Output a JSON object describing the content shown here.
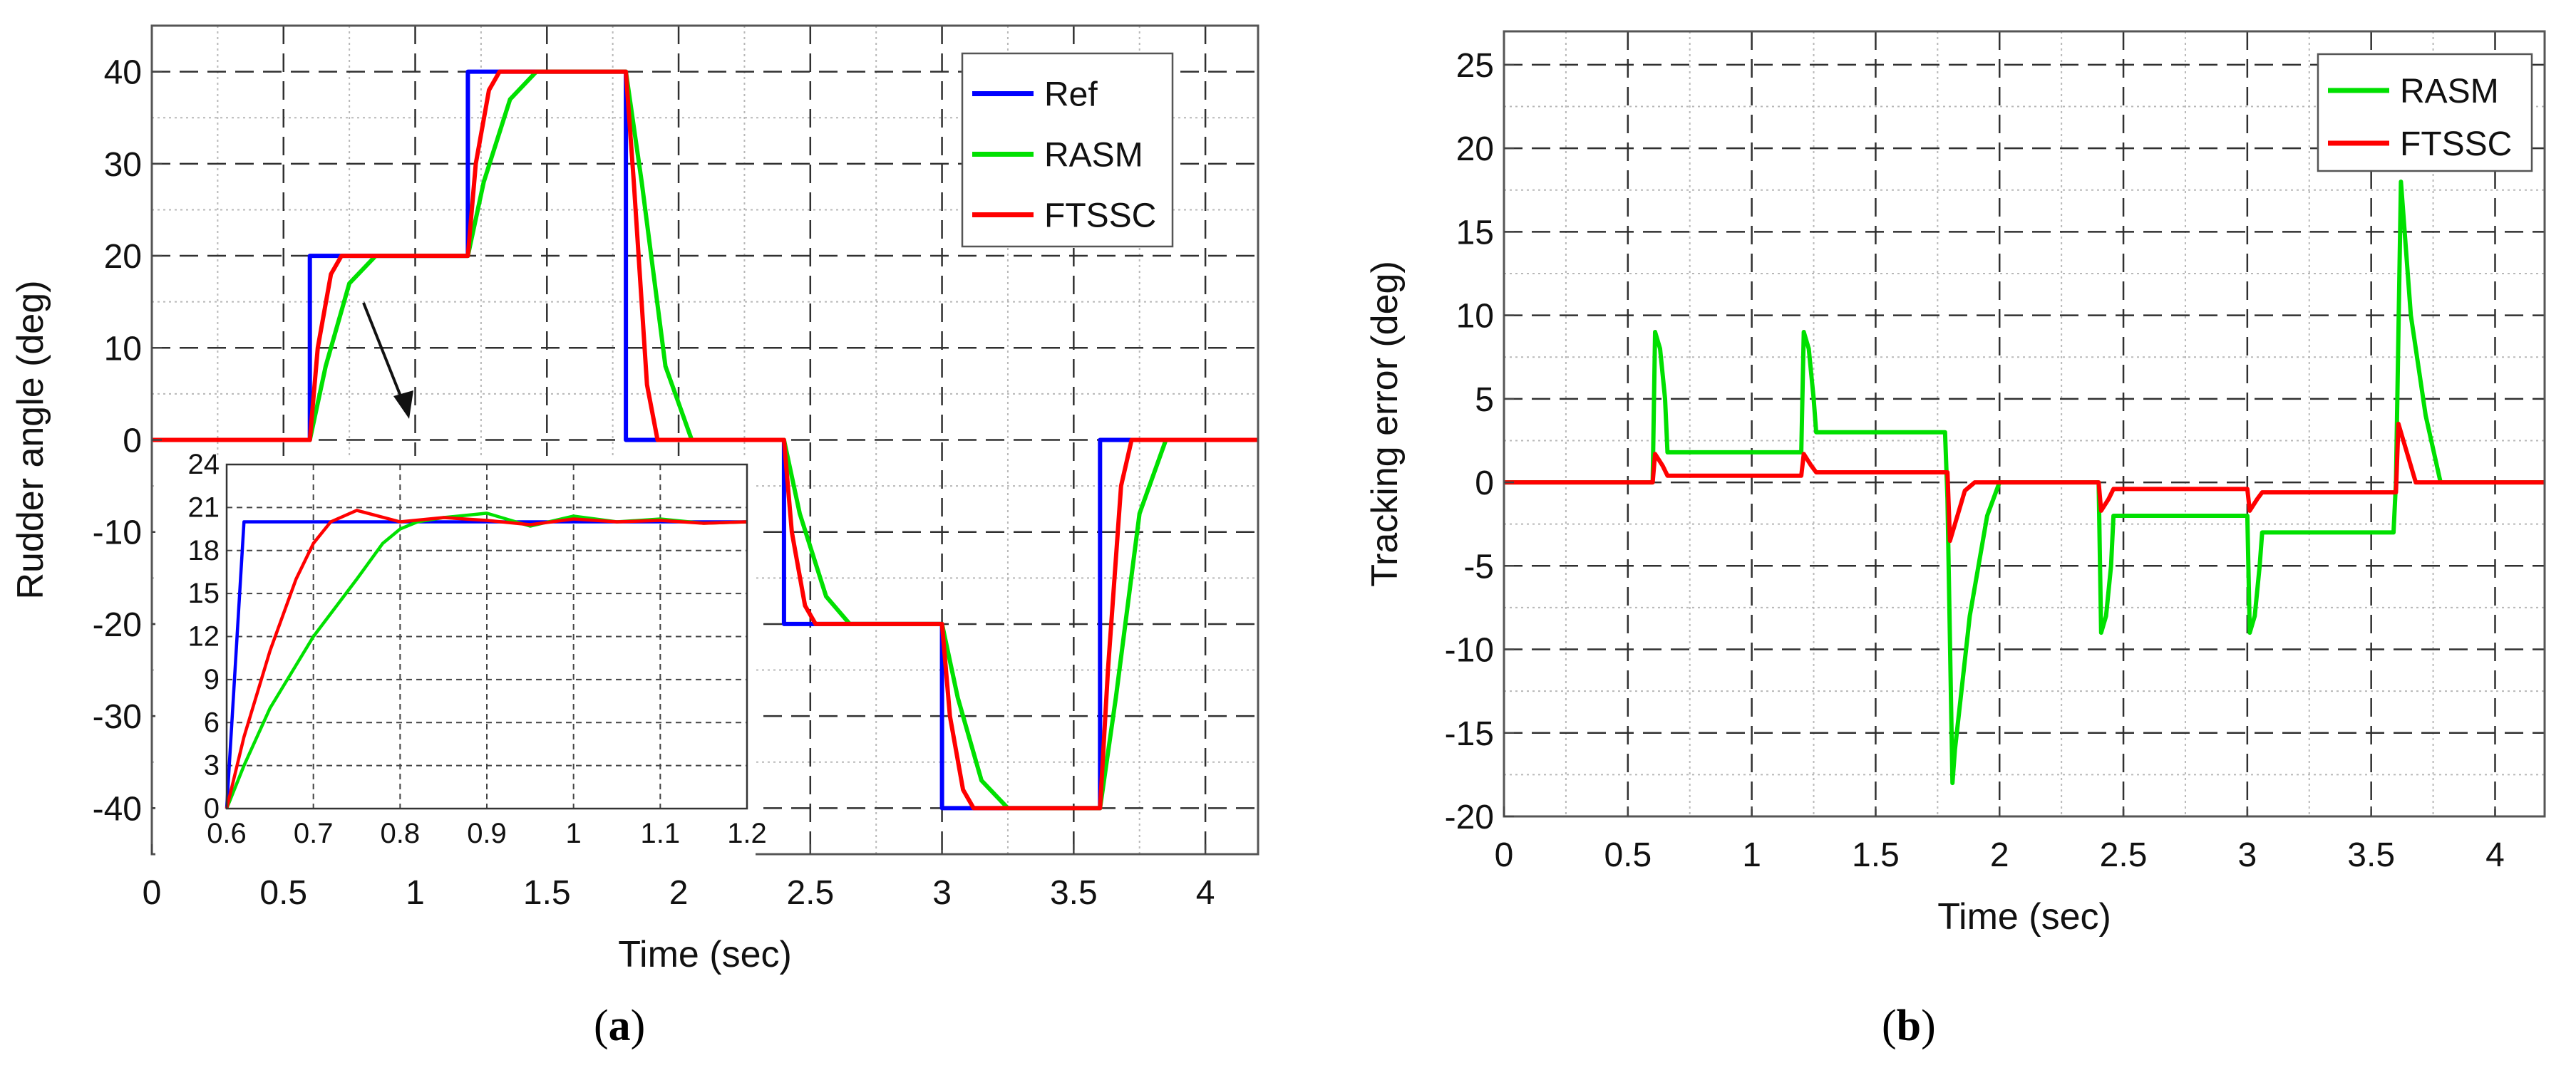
{
  "chart_data": [
    {
      "type": "line",
      "caption_letter": "a",
      "xlabel": "Time (sec)",
      "ylabel": "Rudder angle (deg)",
      "xlim": [
        0,
        4.2
      ],
      "ylim": [
        -45,
        45
      ],
      "xticks": [
        "0",
        "0.5",
        "1",
        "1.5",
        "2",
        "2.5",
        "3",
        "3.5",
        "4"
      ],
      "yticks": [
        "-40",
        "-30",
        "-20",
        "-10",
        "0",
        "10",
        "20",
        "30",
        "40"
      ],
      "grid": true,
      "legend_position": "top-right",
      "annotation": "arrow pointing from the 0.6–0.7 s rise to the zoomed inset",
      "series": [
        {
          "name": "Ref",
          "color": "#0000ff",
          "x": [
            0,
            0.6,
            0.6,
            1.2,
            1.2,
            1.8,
            1.8,
            2.4,
            2.4,
            3.0,
            3.0,
            3.6,
            3.6,
            4.2
          ],
          "y": [
            0,
            0,
            20,
            20,
            40,
            40,
            0,
            0,
            -20,
            -20,
            -40,
            -40,
            0,
            0
          ]
        },
        {
          "name": "RASM",
          "color": "#00e000",
          "x": [
            0,
            0.6,
            0.66,
            0.75,
            0.85,
            1.2,
            1.26,
            1.36,
            1.46,
            1.8,
            1.86,
            1.95,
            2.05,
            2.4,
            2.46,
            2.56,
            2.65,
            3.0,
            3.06,
            3.15,
            3.25,
            3.6,
            3.66,
            3.75,
            3.85,
            4.2
          ],
          "y": [
            0,
            0,
            8,
            17,
            20,
            20,
            28,
            37,
            40,
            40,
            28,
            8,
            0,
            0,
            -8,
            -17,
            -20,
            -20,
            -28,
            -37,
            -40,
            -40,
            -28,
            -8,
            0,
            0
          ]
        },
        {
          "name": "FTSSC",
          "color": "#ff0000",
          "x": [
            0,
            0.6,
            0.63,
            0.68,
            0.72,
            1.2,
            1.23,
            1.28,
            1.32,
            1.8,
            1.83,
            1.88,
            1.92,
            2.4,
            2.43,
            2.48,
            2.52,
            3.0,
            3.03,
            3.08,
            3.12,
            3.6,
            3.63,
            3.68,
            3.72,
            4.2
          ],
          "y": [
            0,
            0,
            10,
            18,
            20,
            20,
            30,
            38,
            40,
            40,
            28,
            6,
            0,
            0,
            -10,
            -18,
            -20,
            -20,
            -30,
            -38,
            -40,
            -40,
            -25,
            -5,
            0,
            0
          ]
        }
      ],
      "inset": {
        "xlim": [
          0.6,
          1.2
        ],
        "ylim": [
          0,
          24
        ],
        "xticks": [
          "0.6",
          "0.7",
          "0.8",
          "0.9",
          "1",
          "1.1",
          "1.2"
        ],
        "yticks": [
          "0",
          "3",
          "6",
          "9",
          "12",
          "15",
          "18",
          "21",
          "24"
        ],
        "series": [
          {
            "name": "Ref",
            "color": "#0000ff",
            "x": [
              0.6,
              0.62,
              1.2
            ],
            "y": [
              0,
              20,
              20
            ]
          },
          {
            "name": "RASM",
            "color": "#00e000",
            "x": [
              0.6,
              0.62,
              0.65,
              0.7,
              0.75,
              0.78,
              0.8,
              0.82,
              0.85,
              0.9,
              0.95,
              1.0,
              1.05,
              1.1,
              1.15,
              1.2
            ],
            "y": [
              0,
              3,
              7,
              12,
              16,
              18.5,
              19.5,
              20,
              20.3,
              20.6,
              19.7,
              20.4,
              20.0,
              20.2,
              19.9,
              20.0
            ]
          },
          {
            "name": "FTSSC",
            "color": "#ff0000",
            "x": [
              0.6,
              0.62,
              0.65,
              0.68,
              0.7,
              0.72,
              0.75,
              0.8,
              0.85,
              0.9,
              0.95,
              1.0,
              1.05,
              1.1,
              1.15,
              1.2
            ],
            "y": [
              0,
              5,
              11,
              16,
              18.5,
              20,
              20.8,
              20.0,
              20.3,
              20.1,
              19.8,
              20.2,
              20.0,
              20.1,
              19.9,
              20.0
            ]
          }
        ]
      }
    },
    {
      "type": "line",
      "caption_letter": "b",
      "xlabel": "Time (sec)",
      "ylabel": "Tracking error (deg)",
      "xlim": [
        0,
        4.2
      ],
      "ylim": [
        -20,
        27
      ],
      "xticks": [
        "0",
        "0.5",
        "1",
        "1.5",
        "2",
        "2.5",
        "3",
        "3.5",
        "4"
      ],
      "yticks": [
        "-20",
        "-15",
        "-10",
        "-5",
        "0",
        "5",
        "10",
        "15",
        "20",
        "25"
      ],
      "grid": true,
      "legend_position": "top-right",
      "series": [
        {
          "name": "RASM",
          "color": "#00e000",
          "x": [
            0,
            0.6,
            0.61,
            0.63,
            0.65,
            0.66,
            1.2,
            1.21,
            1.23,
            1.25,
            1.26,
            1.78,
            1.79,
            1.81,
            1.82,
            1.88,
            1.95,
            2.0,
            2.4,
            2.41,
            2.43,
            2.45,
            2.46,
            3.0,
            3.01,
            3.03,
            3.05,
            3.06,
            3.59,
            3.6,
            3.62,
            3.66,
            3.72,
            3.78,
            4.2
          ],
          "y": [
            0,
            0,
            9,
            8,
            5,
            1.8,
            1.8,
            9,
            8,
            5,
            3,
            3,
            -1,
            -18,
            -16,
            -8,
            -2,
            0,
            0,
            -9,
            -8,
            -5,
            -2,
            -2,
            -9,
            -8,
            -5,
            -3,
            -3,
            0,
            18,
            10,
            4,
            0,
            0
          ]
        },
        {
          "name": "FTSSC",
          "color": "#ff0000",
          "x": [
            0,
            0.6,
            0.61,
            0.64,
            0.66,
            1.2,
            1.21,
            1.24,
            1.26,
            1.79,
            1.8,
            1.82,
            1.86,
            1.9,
            2.4,
            2.41,
            2.44,
            2.46,
            3.0,
            3.01,
            3.04,
            3.06,
            3.6,
            3.61,
            3.64,
            3.68,
            4.2
          ],
          "y": [
            0,
            0,
            1.7,
            1.0,
            0.4,
            0.4,
            1.7,
            1.0,
            0.6,
            0.6,
            -3.5,
            -2.5,
            -0.5,
            0,
            0,
            -1.7,
            -1.0,
            -0.4,
            -0.4,
            -1.7,
            -1.0,
            -0.6,
            -0.6,
            3.5,
            2.0,
            0,
            0
          ]
        }
      ]
    }
  ]
}
